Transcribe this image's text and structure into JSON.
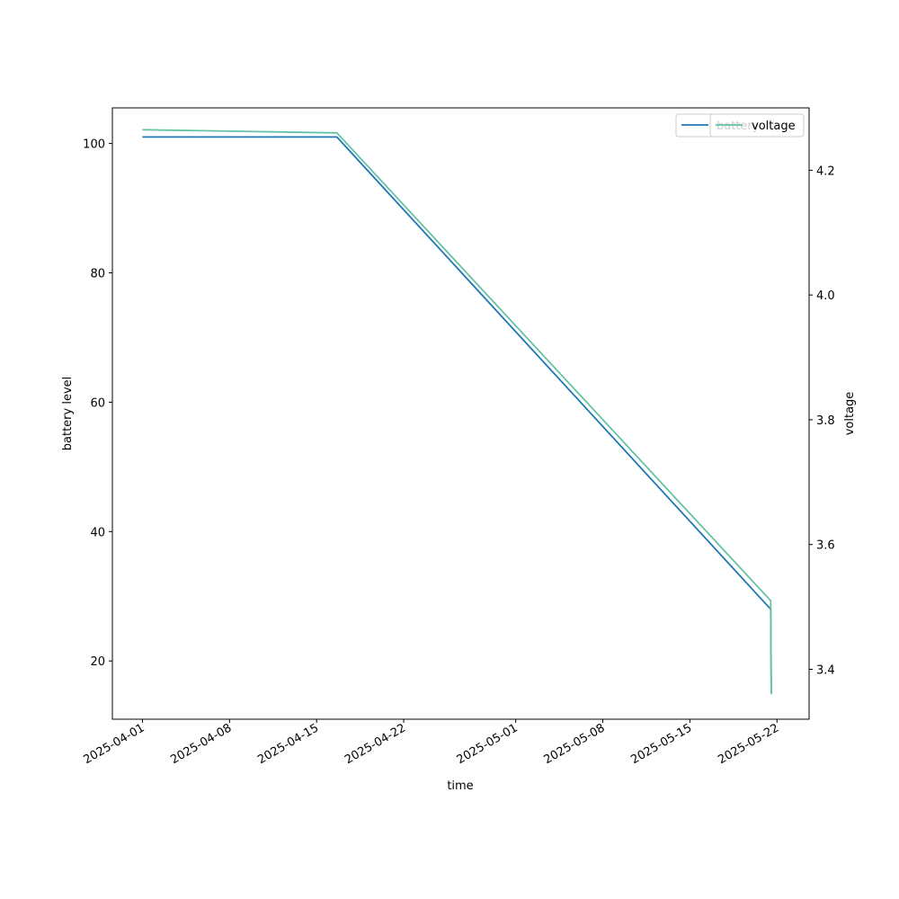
{
  "chart_data": {
    "type": "line",
    "title": "",
    "xlabel": "time",
    "ylabel_left": "battery level",
    "ylabel_right": "voltage",
    "x_ticks": [
      "2025-04-01",
      "2025-04-08",
      "2025-04-15",
      "2025-04-22",
      "2025-05-01",
      "2025-05-08",
      "2025-05-15",
      "2025-05-22"
    ],
    "xlim": [
      "2025-03-29T14:00",
      "2025-05-24T14:00"
    ],
    "y_left_ticks": [
      20,
      40,
      60,
      80,
      100
    ],
    "ylim_left": [
      11,
      105.5
    ],
    "y_right_ticks": [
      3.4,
      3.6,
      3.8,
      4.0,
      4.2
    ],
    "ylim_right": [
      3.32,
      4.3
    ],
    "grid": false,
    "legend_left_position": "upper right",
    "legend_right_position": "upper right",
    "series": [
      {
        "name": "battery",
        "axis": "left",
        "color": "#1f77b4",
        "points": [
          {
            "x": "2025-04-01T00:00",
            "y": 101
          },
          {
            "x": "2025-04-16T15:00",
            "y": 101
          },
          {
            "x": "2025-05-21T12:00",
            "y": 28
          },
          {
            "x": "2025-05-21T13:00",
            "y": 15
          }
        ]
      },
      {
        "name": "voltage",
        "axis": "right",
        "color": "#66c2a5",
        "points": [
          {
            "x": "2025-04-01T00:00",
            "y": 4.265
          },
          {
            "x": "2025-04-16T15:00",
            "y": 4.26
          },
          {
            "x": "2025-05-21T12:00",
            "y": 3.51
          },
          {
            "x": "2025-05-21T13:00",
            "y": 3.36
          }
        ]
      }
    ]
  }
}
